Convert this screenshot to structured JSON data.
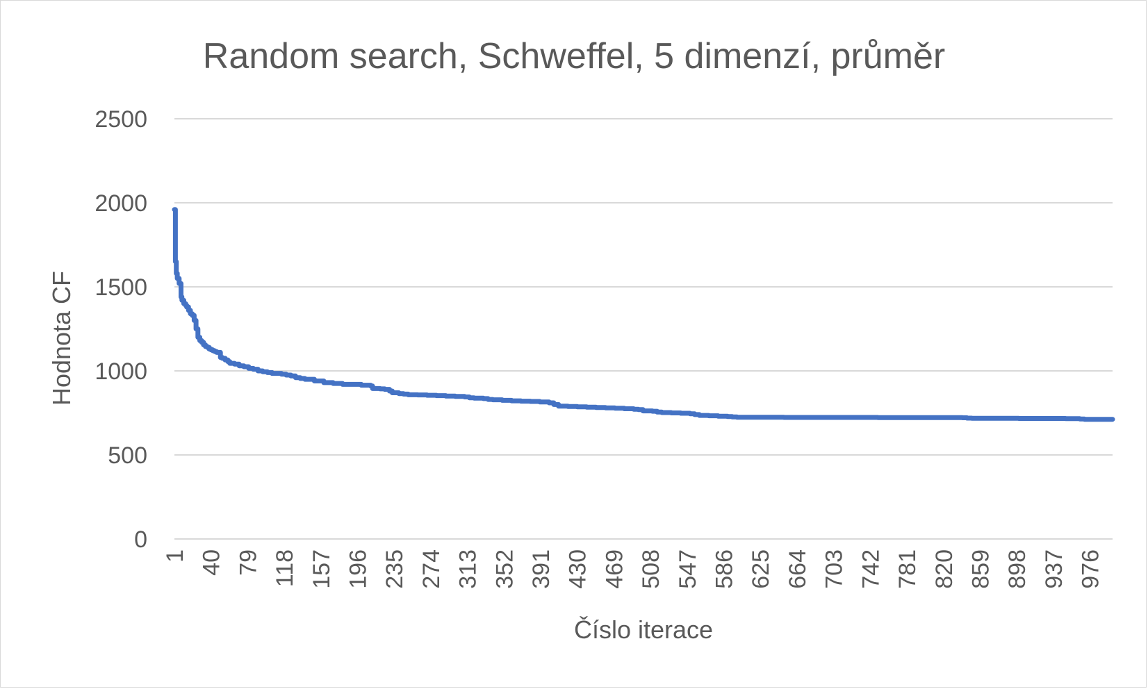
{
  "chart_data": {
    "type": "line",
    "title": "Random search, Schweffel, 5 dimenzí, průměr",
    "xlabel": "Číslo iterace",
    "ylabel": "Hodnota CF",
    "ylim": [
      0,
      2500
    ],
    "yticks": [
      0,
      500,
      1000,
      1500,
      2000,
      2500
    ],
    "x_range": [
      1,
      1000
    ],
    "xticks": [
      "1",
      "40",
      "79",
      "118",
      "157",
      "196",
      "235",
      "274",
      "313",
      "352",
      "391",
      "430",
      "469",
      "508",
      "547",
      "586",
      "625",
      "664",
      "703",
      "742",
      "781",
      "820",
      "859",
      "898",
      "937",
      "976"
    ],
    "grid": true,
    "legend": "none",
    "colors": {
      "series": "#4472c4",
      "grid": "#d9d9d9",
      "text": "#595959"
    },
    "series": [
      {
        "x": [
          1,
          2,
          3,
          4,
          6,
          8,
          9,
          11,
          13,
          14,
          16,
          18,
          20,
          22,
          24,
          26,
          28,
          30,
          32,
          34,
          36,
          38,
          40,
          42,
          44,
          46,
          50,
          52,
          55,
          58,
          60,
          65,
          70,
          75,
          80,
          85,
          90,
          95,
          100,
          105,
          110,
          115,
          120,
          125,
          130,
          135,
          140,
          150,
          160,
          170,
          180,
          190,
          200,
          210,
          212,
          220,
          225,
          230,
          233,
          240,
          245,
          250,
          260,
          270,
          280,
          290,
          300,
          310,
          315,
          320,
          330,
          335,
          340,
          350,
          360,
          370,
          380,
          390,
          400,
          405,
          410,
          420,
          430,
          440,
          450,
          460,
          470,
          480,
          490,
          495,
          500,
          510,
          515,
          520,
          530,
          540,
          550,
          555,
          560,
          570,
          580,
          590,
          595,
          600,
          620,
          650,
          700,
          750,
          800,
          840,
          845,
          850,
          900,
          950,
          965,
          970,
          1000
        ],
        "values": [
          1960,
          1650,
          1580,
          1550,
          1520,
          1440,
          1420,
          1400,
          1390,
          1380,
          1360,
          1340,
          1330,
          1300,
          1250,
          1200,
          1180,
          1170,
          1155,
          1145,
          1140,
          1130,
          1125,
          1120,
          1115,
          1110,
          1080,
          1075,
          1065,
          1055,
          1045,
          1040,
          1030,
          1025,
          1015,
          1010,
          1000,
          995,
          990,
          985,
          985,
          980,
          975,
          970,
          960,
          955,
          950,
          940,
          930,
          925,
          920,
          920,
          915,
          910,
          895,
          893,
          890,
          880,
          870,
          865,
          862,
          858,
          857,
          855,
          853,
          850,
          848,
          845,
          840,
          838,
          835,
          830,
          828,
          825,
          822,
          820,
          818,
          815,
          810,
          800,
          790,
          788,
          786,
          784,
          782,
          780,
          778,
          775,
          772,
          770,
          762,
          760,
          755,
          752,
          750,
          748,
          745,
          740,
          735,
          733,
          730,
          728,
          726,
          724,
          724,
          723,
          723,
          722,
          722,
          721,
          719,
          718,
          717,
          716,
          714,
          712,
          712
        ]
      }
    ]
  }
}
